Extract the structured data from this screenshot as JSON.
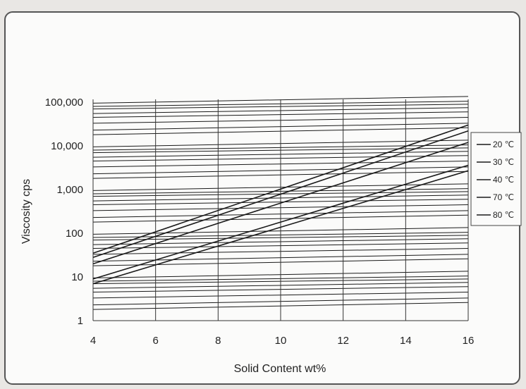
{
  "chart_data": {
    "type": "line",
    "title": "",
    "xlabel": "Solid Content wt%",
    "ylabel": "Viscosity cps",
    "xlim": [
      4,
      16
    ],
    "ylim": [
      1,
      100000
    ],
    "yscale": "log",
    "grid": true,
    "legend_position": "right",
    "x_ticks": [
      4,
      6,
      8,
      10,
      12,
      14,
      16
    ],
    "y_ticks": [
      1,
      10,
      100,
      1000,
      10000,
      100000
    ],
    "y_tick_labels": [
      "1",
      "10",
      "100",
      "1,000",
      "10,000",
      "100,000"
    ],
    "series": [
      {
        "name": "20 ℃",
        "x": [
          4,
          16
        ],
        "y": [
          35,
          30000
        ]
      },
      {
        "name": "30 ℃",
        "x": [
          4,
          16
        ],
        "y": [
          28,
          22000
        ]
      },
      {
        "name": "40 ℃",
        "x": [
          4,
          16
        ],
        "y": [
          20,
          12000
        ]
      },
      {
        "name": "70 ℃",
        "x": [
          4,
          16
        ],
        "y": [
          9,
          3600
        ]
      },
      {
        "name": "80 ℃",
        "x": [
          4,
          16
        ],
        "y": [
          7,
          2700
        ]
      }
    ],
    "background_log_lines": [
      [
        1.8,
        2.6
      ],
      [
        2.3,
        3.3
      ],
      [
        3.3,
        4.5
      ],
      [
        4.5,
        6
      ],
      [
        5.5,
        7.5
      ],
      [
        7,
        9
      ],
      [
        8,
        10.5
      ],
      [
        9.5,
        13.5
      ],
      [
        18,
        26
      ],
      [
        23,
        33
      ],
      [
        33,
        45
      ],
      [
        45,
        60
      ],
      [
        55,
        75
      ],
      [
        70,
        90
      ],
      [
        80,
        105
      ],
      [
        95,
        135
      ],
      [
        180,
        260
      ],
      [
        230,
        330
      ],
      [
        330,
        450
      ],
      [
        450,
        600
      ],
      [
        550,
        750
      ],
      [
        700,
        900
      ],
      [
        800,
        1050
      ],
      [
        950,
        1350
      ],
      [
        1800,
        2600
      ],
      [
        2300,
        3300
      ],
      [
        3300,
        4500
      ],
      [
        4500,
        6000
      ],
      [
        5500,
        7500
      ],
      [
        7000,
        9000
      ],
      [
        8000,
        10500
      ],
      [
        9500,
        13500
      ],
      [
        18000,
        26000
      ],
      [
        23000,
        33000
      ],
      [
        33000,
        45000
      ],
      [
        45000,
        60000
      ],
      [
        55000,
        75000
      ],
      [
        70000,
        90000
      ],
      [
        80000,
        105000
      ],
      [
        95000,
        135000
      ]
    ],
    "colors": {
      "line": "#1a1a1a",
      "grid": "#333333",
      "frame": "#555555"
    }
  }
}
